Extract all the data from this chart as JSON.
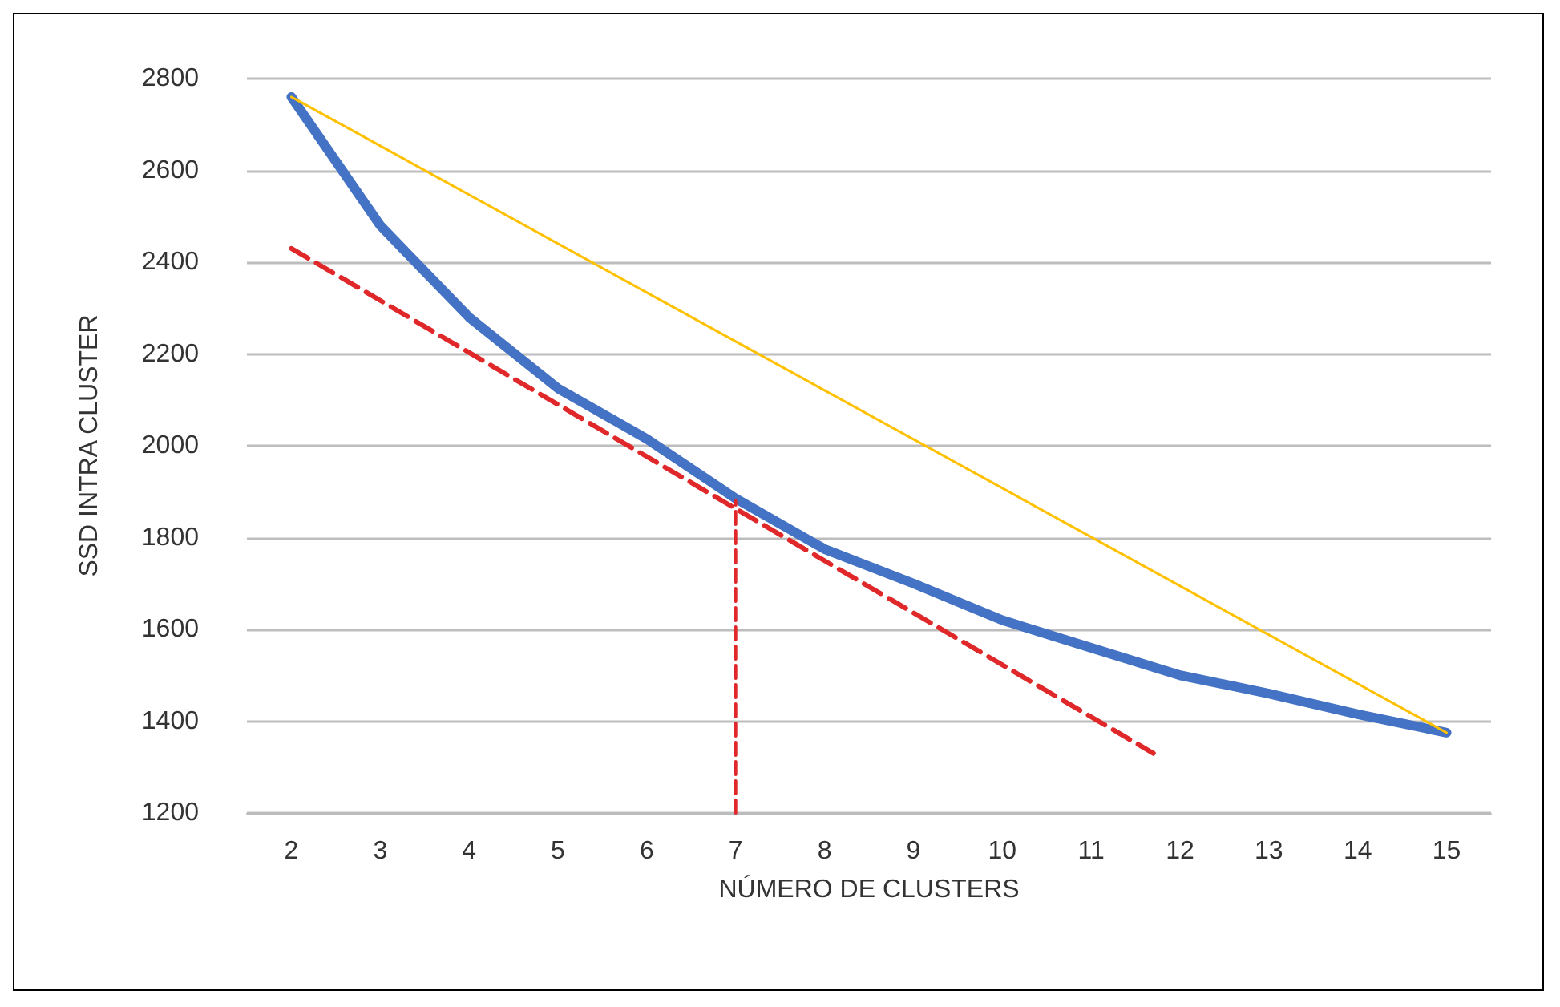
{
  "chart_data": {
    "type": "line",
    "xlabel": "NÚMERO DE CLUSTERS",
    "ylabel": "SSD INTRA CLUSTER",
    "xlim": [
      1.5,
      15.5
    ],
    "xticks": [
      2,
      3,
      4,
      5,
      6,
      7,
      8,
      9,
      10,
      11,
      12,
      13,
      14,
      15
    ],
    "ylim": [
      1200,
      2800
    ],
    "yticks": [
      1200,
      1400,
      1600,
      1800,
      2000,
      2200,
      2400,
      2600,
      2800
    ],
    "grid": "y",
    "marker": "none",
    "series": [
      {
        "color": "#4472c4",
        "x": [
          2,
          3,
          4,
          5,
          6,
          7,
          8,
          9,
          10,
          11,
          12,
          13,
          14,
          15
        ],
        "values": [
          2760,
          2480,
          2280,
          2125,
          2015,
          1885,
          1775,
          1700,
          1620,
          1560,
          1500,
          1460,
          1415,
          1375
        ],
        "line_style": "solid"
      },
      {
        "color": "#ffc000",
        "x": [
          2,
          15
        ],
        "values": [
          2760,
          1375
        ],
        "line_style": "solid"
      },
      {
        "color": "#e0282a",
        "x": [
          2,
          11.7
        ],
        "values": [
          2430,
          1330
        ],
        "line_style": "dashed"
      },
      {
        "color": "#e0282a",
        "x": [
          7,
          7
        ],
        "values": [
          1200,
          1880
        ],
        "line_style": "dashed"
      }
    ]
  }
}
